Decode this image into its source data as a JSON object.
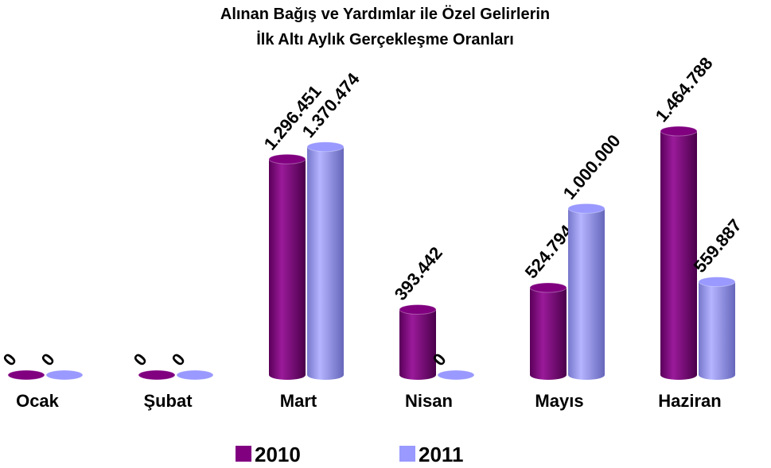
{
  "chart_data": {
    "type": "bar",
    "title": "Alınan Bağış ve Yardımlar ile Özel Gelirlerin",
    "subtitle": "İlk Altı Aylık Gerçekleşme Oranları",
    "categories": [
      "Ocak",
      "Şubat",
      "Mart",
      "Nisan",
      "Mayıs",
      "Haziran"
    ],
    "series": [
      {
        "name": "2010",
        "color": "#800080",
        "values": [
          0,
          0,
          1296451,
          393442,
          524794,
          1464788
        ],
        "value_labels": [
          "0",
          "0",
          "1.296.451",
          "393.442",
          "524.794",
          "1.464.788"
        ]
      },
      {
        "name": "2011",
        "color": "#9999ff",
        "values": [
          0,
          0,
          1370474,
          0,
          1000000,
          559887
        ],
        "value_labels": [
          "0",
          "0",
          "1.370.474",
          "0",
          "1.000.000",
          "559.887"
        ]
      }
    ],
    "legend": "bottom"
  }
}
